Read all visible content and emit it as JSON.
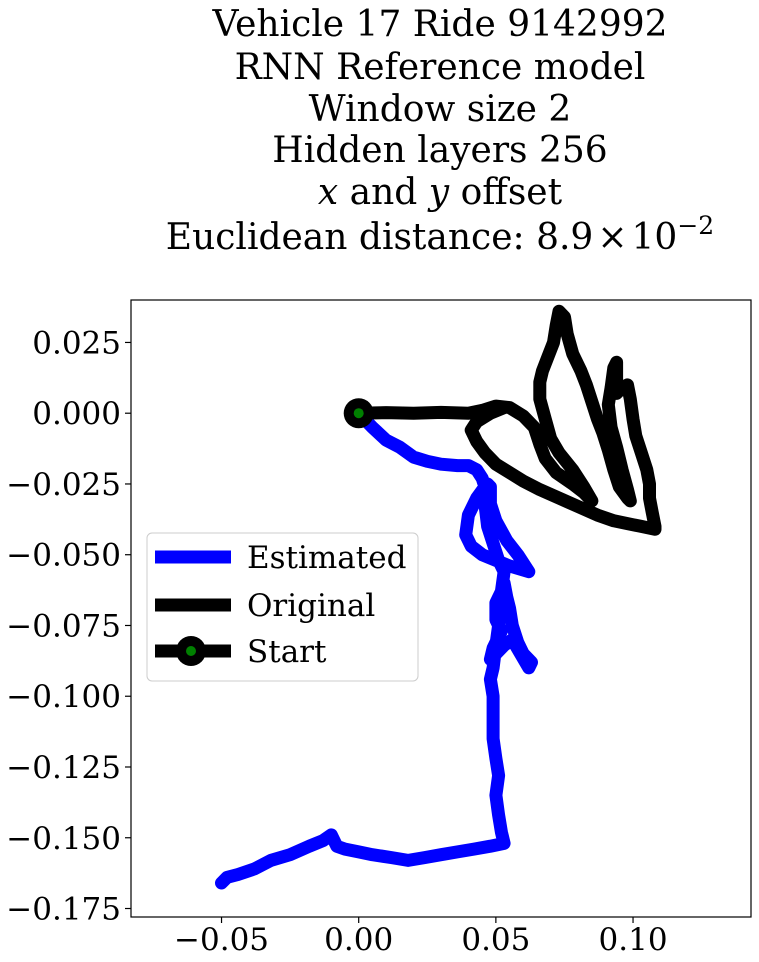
{
  "chart_data": {
    "type": "line",
    "title_lines": [
      "Vehicle 17 Ride 9142992",
      "RNN Reference model",
      "Window size 2",
      "Hidden layers 256",
      "x and y offset",
      "Euclidean distance: 8.9×10⁻²"
    ],
    "title_rich": {
      "line4": [
        {
          "text": "x",
          "italic": true
        },
        {
          "text": " and ",
          "italic": false
        },
        {
          "text": "y",
          "italic": true
        },
        {
          "text": " offset",
          "italic": false
        }
      ],
      "line5": {
        "prefix": "Euclidean distance: 8.9",
        "times": "×",
        "base": "10",
        "exponent": "−2"
      }
    },
    "xlabel": "",
    "ylabel": "",
    "xlim": [
      -0.083,
      0.143
    ],
    "ylim": [
      -0.178,
      0.04
    ],
    "xticks": [
      -0.05,
      0.0,
      0.05,
      0.1
    ],
    "xtick_labels": [
      "−0.05",
      "0.00",
      "0.05",
      "0.10"
    ],
    "yticks": [
      0.025,
      0.0,
      -0.025,
      -0.05,
      -0.075,
      -0.1,
      -0.125,
      -0.15,
      -0.175
    ],
    "ytick_labels": [
      "0.025",
      "0.000",
      "−0.025",
      "−0.050",
      "−0.075",
      "−0.100",
      "−0.125",
      "−0.150",
      "−0.175"
    ],
    "grid": false,
    "legend_position": "center-left",
    "series": [
      {
        "name": "Estimated",
        "color": "#0000ff",
        "points": [
          [
            0.0,
            0.0
          ],
          [
            0.005,
            -0.005
          ],
          [
            0.01,
            -0.0095
          ],
          [
            0.015,
            -0.012
          ],
          [
            0.02,
            -0.0155
          ],
          [
            0.025,
            -0.017
          ],
          [
            0.03,
            -0.018
          ],
          [
            0.036,
            -0.0185
          ],
          [
            0.04,
            -0.0185
          ],
          [
            0.043,
            -0.02
          ],
          [
            0.045,
            -0.023
          ],
          [
            0.046,
            -0.026
          ],
          [
            0.043,
            -0.03
          ],
          [
            0.04,
            -0.036
          ],
          [
            0.039,
            -0.043
          ],
          [
            0.041,
            -0.047
          ],
          [
            0.045,
            -0.05
          ],
          [
            0.05,
            -0.052
          ],
          [
            0.055,
            -0.054
          ],
          [
            0.062,
            -0.056
          ],
          [
            0.058,
            -0.05
          ],
          [
            0.054,
            -0.045
          ],
          [
            0.05,
            -0.038
          ],
          [
            0.048,
            -0.032
          ],
          [
            0.048,
            -0.026
          ],
          [
            0.047,
            -0.025
          ],
          [
            0.046,
            -0.032
          ],
          [
            0.047,
            -0.04
          ],
          [
            0.049,
            -0.046
          ],
          [
            0.051,
            -0.052
          ],
          [
            0.053,
            -0.056
          ],
          [
            0.052,
            -0.063
          ],
          [
            0.05,
            -0.067
          ],
          [
            0.05,
            -0.073
          ],
          [
            0.052,
            -0.077
          ],
          [
            0.049,
            -0.083
          ],
          [
            0.048,
            -0.087
          ],
          [
            0.05,
            -0.085
          ],
          [
            0.053,
            -0.082
          ],
          [
            0.056,
            -0.08
          ],
          [
            0.059,
            -0.085
          ],
          [
            0.062,
            -0.09
          ],
          [
            0.063,
            -0.088
          ],
          [
            0.06,
            -0.085
          ],
          [
            0.058,
            -0.081
          ],
          [
            0.056,
            -0.075
          ],
          [
            0.055,
            -0.069
          ],
          [
            0.054,
            -0.065
          ],
          [
            0.053,
            -0.06
          ],
          [
            0.052,
            -0.066
          ],
          [
            0.051,
            -0.075
          ],
          [
            0.05,
            -0.082
          ],
          [
            0.049,
            -0.09
          ],
          [
            0.048,
            -0.094
          ],
          [
            0.049,
            -0.1
          ],
          [
            0.049,
            -0.108
          ],
          [
            0.049,
            -0.115
          ],
          [
            0.05,
            -0.122
          ],
          [
            0.051,
            -0.128
          ],
          [
            0.05,
            -0.135
          ],
          [
            0.051,
            -0.142
          ],
          [
            0.052,
            -0.148
          ],
          [
            0.053,
            -0.152
          ],
          [
            0.048,
            -0.153
          ],
          [
            0.042,
            -0.154
          ],
          [
            0.036,
            -0.155
          ],
          [
            0.03,
            -0.156
          ],
          [
            0.024,
            -0.157
          ],
          [
            0.018,
            -0.158
          ],
          [
            0.012,
            -0.157
          ],
          [
            0.005,
            -0.156
          ],
          [
            0.0,
            -0.155
          ],
          [
            -0.005,
            -0.154
          ],
          [
            -0.008,
            -0.153
          ],
          [
            -0.01,
            -0.149
          ],
          [
            -0.013,
            -0.151
          ],
          [
            -0.018,
            -0.153
          ],
          [
            -0.025,
            -0.156
          ],
          [
            -0.032,
            -0.158
          ],
          [
            -0.038,
            -0.161
          ],
          [
            -0.044,
            -0.163
          ],
          [
            -0.048,
            -0.164
          ],
          [
            -0.05,
            -0.166
          ]
        ]
      },
      {
        "name": "Original",
        "color": "#000000",
        "points": [
          [
            0.0,
            0.0
          ],
          [
            0.01,
            0.0002
          ],
          [
            0.02,
            0.0
          ],
          [
            0.03,
            0.0003
          ],
          [
            0.04,
            0.0
          ],
          [
            0.045,
            0.001
          ],
          [
            0.05,
            0.0025
          ],
          [
            0.055,
            0.002
          ],
          [
            0.06,
            -0.001
          ],
          [
            0.064,
            -0.005
          ],
          [
            0.066,
            -0.011
          ],
          [
            0.068,
            -0.016
          ],
          [
            0.072,
            -0.021
          ],
          [
            0.078,
            -0.025
          ],
          [
            0.082,
            -0.028
          ],
          [
            0.085,
            -0.031
          ],
          [
            0.082,
            -0.026
          ],
          [
            0.078,
            -0.02
          ],
          [
            0.073,
            -0.014
          ],
          [
            0.07,
            -0.009
          ],
          [
            0.068,
            -0.002
          ],
          [
            0.066,
            0.005
          ],
          [
            0.066,
            0.011
          ],
          [
            0.067,
            0.015
          ],
          [
            0.069,
            0.02
          ],
          [
            0.071,
            0.025
          ],
          [
            0.072,
            0.031
          ],
          [
            0.073,
            0.036
          ],
          [
            0.075,
            0.034
          ],
          [
            0.076,
            0.028
          ],
          [
            0.078,
            0.021
          ],
          [
            0.081,
            0.015
          ],
          [
            0.083,
            0.01
          ],
          [
            0.085,
            0.004
          ],
          [
            0.087,
            -0.002
          ],
          [
            0.089,
            -0.007
          ],
          [
            0.091,
            -0.013
          ],
          [
            0.093,
            -0.02
          ],
          [
            0.095,
            -0.026
          ],
          [
            0.098,
            -0.03
          ],
          [
            0.099,
            -0.031
          ],
          [
            0.098,
            -0.027
          ],
          [
            0.096,
            -0.02
          ],
          [
            0.094,
            -0.012
          ],
          [
            0.092,
            -0.005
          ],
          [
            0.091,
            0.003
          ],
          [
            0.092,
            0.009
          ],
          [
            0.093,
            0.016
          ],
          [
            0.094,
            0.018
          ],
          [
            0.094,
            0.012
          ],
          [
            0.094,
            0.007
          ],
          [
            0.096,
            0.009
          ],
          [
            0.098,
            0.01
          ],
          [
            0.099,
            0.005
          ],
          [
            0.1,
            -0.002
          ],
          [
            0.101,
            -0.008
          ],
          [
            0.103,
            -0.014
          ],
          [
            0.105,
            -0.02
          ],
          [
            0.106,
            -0.025
          ],
          [
            0.106,
            -0.03
          ],
          [
            0.107,
            -0.035
          ],
          [
            0.108,
            -0.04
          ],
          [
            0.108,
            -0.041
          ],
          [
            0.103,
            -0.04
          ],
          [
            0.098,
            -0.039
          ],
          [
            0.093,
            -0.038
          ],
          [
            0.087,
            -0.036
          ],
          [
            0.08,
            -0.033
          ],
          [
            0.073,
            -0.03
          ],
          [
            0.066,
            -0.027
          ],
          [
            0.06,
            -0.024
          ],
          [
            0.055,
            -0.021
          ],
          [
            0.05,
            -0.018
          ],
          [
            0.046,
            -0.014
          ],
          [
            0.043,
            -0.01
          ],
          [
            0.041,
            -0.006
          ],
          [
            0.043,
            -0.003
          ],
          [
            0.048,
            0.0
          ],
          [
            0.053,
            0.002
          ]
        ]
      }
    ],
    "start_marker": {
      "name": "Start",
      "x": 0.0,
      "y": 0.0,
      "outer_color": "#000000",
      "inner_color": "#008000"
    },
    "legend": {
      "entries": [
        {
          "label": "Estimated",
          "kind": "line",
          "color": "#0000ff"
        },
        {
          "label": "Original",
          "kind": "line",
          "color": "#000000"
        },
        {
          "label": "Start",
          "kind": "marker",
          "color": "#000000",
          "marker_inner": "#008000"
        }
      ]
    }
  }
}
